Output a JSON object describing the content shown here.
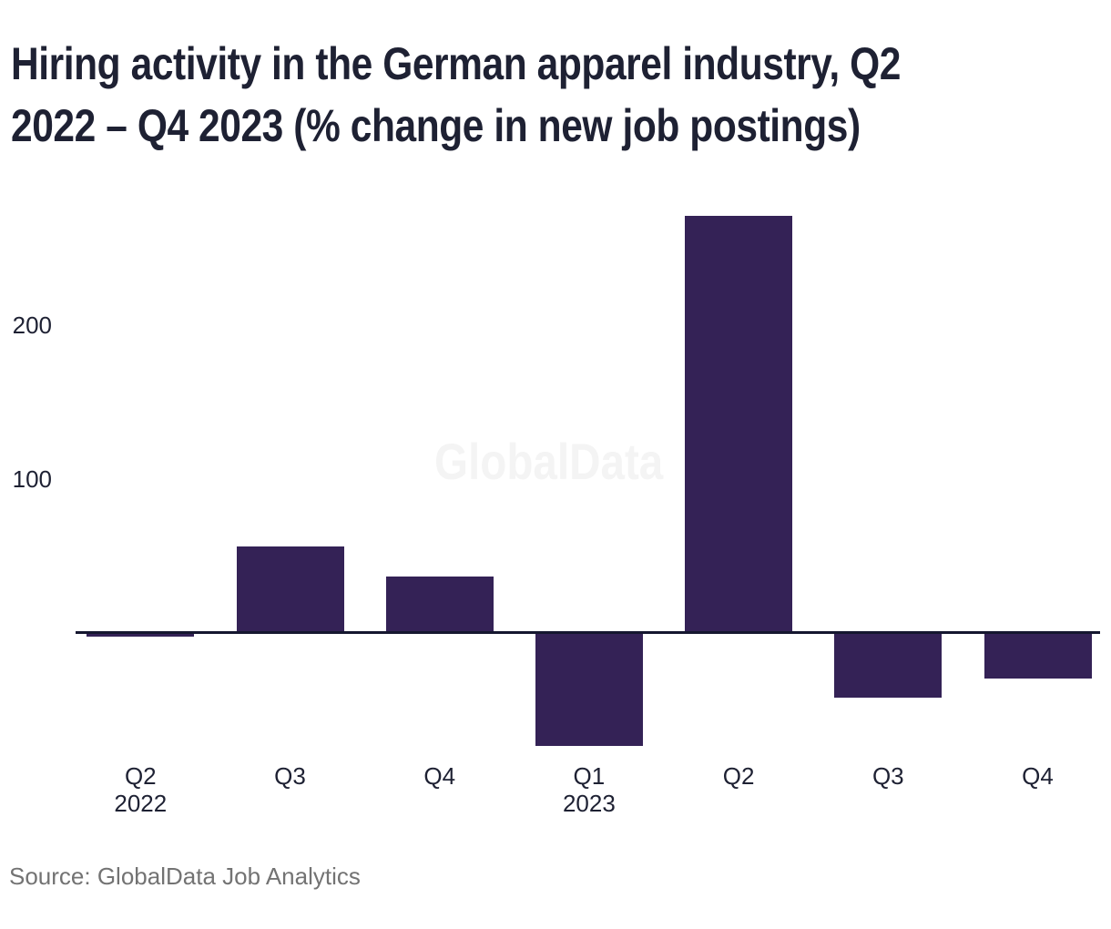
{
  "title": {
    "full": "Hiring activity in the German apparel industry, Q2 2022 – Q4 2023 (% change in new job postings)",
    "line1": "Hiring activity in the German apparel industry, Q2",
    "line2": "2022 – Q4 2023 (% change in new job postings)"
  },
  "watermark": {
    "text": "GlobalData"
  },
  "source": {
    "text": "Source: GlobalData Job Analytics"
  },
  "colors": {
    "bar": "#342256",
    "axis_line": "#15172f",
    "text_dark": "#1e2133",
    "source_text": "#737373",
    "watermark": "#f4f4f4",
    "background": "#ffffff"
  },
  "chart_data": {
    "type": "bar",
    "title": "Hiring activity in the German apparel industry, Q2 2022 – Q4 2023 (% change in new job postings)",
    "categories": [
      "Q2 2022",
      "Q3 2022",
      "Q4 2022",
      "Q1 2023",
      "Q2 2023",
      "Q3 2023",
      "Q4 2023"
    ],
    "x_tick_labels": [
      {
        "quarter": "Q2",
        "year": "2022"
      },
      {
        "quarter": "Q3"
      },
      {
        "quarter": "Q4"
      },
      {
        "quarter": "Q1",
        "year": "2023"
      },
      {
        "quarter": "Q2"
      },
      {
        "quarter": "Q3"
      },
      {
        "quarter": "Q4"
      }
    ],
    "values": [
      -3,
      56,
      36,
      -74,
      271,
      -43,
      -30
    ],
    "unit": "% change in new job postings",
    "xlabel": "",
    "ylabel": "",
    "yticks": [
      100,
      200
    ],
    "ylim": [
      -90,
      285
    ],
    "grid": false,
    "legend": false,
    "bar_color": "#342256"
  }
}
